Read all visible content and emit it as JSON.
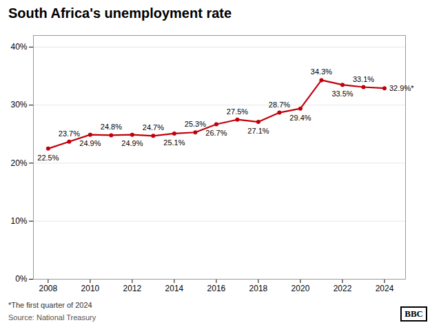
{
  "chart_data": {
    "type": "line",
    "title": "South Africa's unemployment rate",
    "x": [
      2008,
      2009,
      2010,
      2011,
      2012,
      2013,
      2014,
      2015,
      2016,
      2017,
      2018,
      2019,
      2020,
      2021,
      2022,
      2023,
      2024
    ],
    "values": [
      22.5,
      23.7,
      24.9,
      24.8,
      24.9,
      24.7,
      25.1,
      25.3,
      26.7,
      27.5,
      27.1,
      28.7,
      29.4,
      34.3,
      33.5,
      33.1,
      32.9
    ],
    "value_labels": [
      "22.5%",
      "23.7%",
      "24.9%",
      "24.8%",
      "24.9%",
      "24.7%",
      "25.1%",
      "25.3%",
      "26.7%",
      "27.5%",
      "27.1%",
      "28.7%",
      "29.4%",
      "34.3%",
      "33.5%",
      "33.1%",
      "32.9%*"
    ],
    "data_labels": true,
    "color": "#c0000a",
    "marker": "circle",
    "xlim": [
      2007.3,
      2025.0
    ],
    "xticks": [
      2008,
      2010,
      2012,
      2014,
      2016,
      2018,
      2020,
      2022,
      2024
    ],
    "ylim": [
      0,
      42
    ],
    "yticks": [
      {
        "value": 0,
        "label": "0%"
      },
      {
        "value": 10,
        "label": "10%"
      },
      {
        "value": 20,
        "label": "20%"
      },
      {
        "value": 30,
        "label": "30%"
      },
      {
        "value": 40,
        "label": "40%"
      }
    ],
    "grid": true,
    "annotations": [
      "*The first quarter of 2024",
      "Source: National Treasury",
      "BBC"
    ]
  }
}
